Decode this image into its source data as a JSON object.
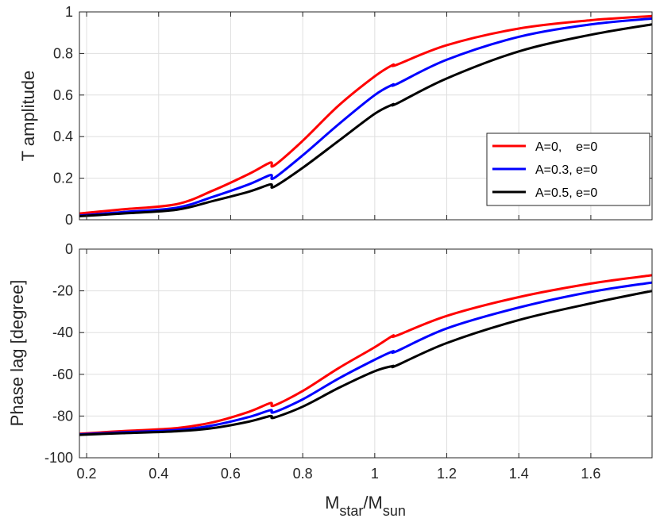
{
  "chart_data": [
    {
      "type": "line",
      "ylabel": "T amplitude",
      "xlabel": "",
      "xlim": [
        0.18,
        1.77
      ],
      "ylim": [
        0,
        1
      ],
      "grid": true,
      "x_ticks": [
        0.2,
        0.4,
        0.6,
        0.8,
        1.0,
        1.2,
        1.4,
        1.6
      ],
      "x_tick_labels": [
        "",
        "",
        "",
        "",
        "",
        "",
        "",
        ""
      ],
      "y_ticks": [
        0,
        0.2,
        0.4,
        0.6,
        0.8,
        1
      ],
      "y_tick_labels": [
        "0",
        "0.2",
        "0.4",
        "0.6",
        "0.8",
        "1"
      ],
      "legend": {
        "placement": "center-right",
        "entries": [
          "A=0,    e=0",
          "A=0.3, e=0",
          "A=0.5, e=0"
        ]
      },
      "series": [
        {
          "name": "A=0,    e=0",
          "color": "#ff0000",
          "x": [
            0.18,
            0.3,
            0.45,
            0.55,
            0.65,
            0.71,
            0.72,
            0.8,
            0.9,
            1.0,
            1.05,
            1.06,
            1.2,
            1.4,
            1.6,
            1.77
          ],
          "y": [
            0.03,
            0.05,
            0.075,
            0.14,
            0.22,
            0.275,
            0.26,
            0.38,
            0.55,
            0.69,
            0.745,
            0.745,
            0.84,
            0.92,
            0.96,
            0.98
          ]
        },
        {
          "name": "A=0.3, e=0",
          "color": "#0000ff",
          "x": [
            0.18,
            0.3,
            0.45,
            0.55,
            0.65,
            0.71,
            0.72,
            0.8,
            0.9,
            1.0,
            1.05,
            1.06,
            1.2,
            1.4,
            1.6,
            1.77
          ],
          "y": [
            0.02,
            0.037,
            0.058,
            0.11,
            0.17,
            0.215,
            0.2,
            0.31,
            0.46,
            0.6,
            0.65,
            0.652,
            0.77,
            0.88,
            0.94,
            0.968
          ]
        },
        {
          "name": "A=0.5, e=0",
          "color": "#000000",
          "x": [
            0.18,
            0.3,
            0.45,
            0.55,
            0.65,
            0.71,
            0.72,
            0.8,
            0.9,
            1.0,
            1.05,
            1.06,
            1.2,
            1.4,
            1.6,
            1.77
          ],
          "y": [
            0.017,
            0.03,
            0.048,
            0.09,
            0.135,
            0.17,
            0.158,
            0.25,
            0.38,
            0.51,
            0.555,
            0.558,
            0.68,
            0.81,
            0.89,
            0.94
          ]
        }
      ]
    },
    {
      "type": "line",
      "ylabel": "Phase lag [degree]",
      "xlabel_main": "M",
      "xlabel_sub1": "star",
      "xlabel_slash": "/M",
      "xlabel_sub2": "sun",
      "xlim": [
        0.18,
        1.77
      ],
      "ylim": [
        -100,
        0
      ],
      "grid": true,
      "x_ticks": [
        0.2,
        0.4,
        0.6,
        0.8,
        1.0,
        1.2,
        1.4,
        1.6
      ],
      "x_tick_labels": [
        "0.2",
        "0.4",
        "0.6",
        "0.8",
        "1",
        "1.2",
        "1.4",
        "1.6"
      ],
      "y_ticks": [
        -100,
        -80,
        -60,
        -40,
        -20,
        0
      ],
      "y_tick_labels": [
        "-100",
        "-80",
        "-60",
        "-40",
        "-20",
        "0"
      ],
      "series": [
        {
          "name": "A=0,    e=0",
          "color": "#ff0000",
          "x": [
            0.18,
            0.3,
            0.45,
            0.55,
            0.65,
            0.71,
            0.72,
            0.8,
            0.9,
            1.0,
            1.05,
            1.06,
            1.2,
            1.4,
            1.6,
            1.77
          ],
          "y": [
            -88.5,
            -87.2,
            -85.8,
            -83,
            -78,
            -73.8,
            -75,
            -68,
            -57,
            -47,
            -41.5,
            -41.5,
            -32,
            -23,
            -16.5,
            -12.5
          ]
        },
        {
          "name": "A=0.3, e=0",
          "color": "#0000ff",
          "x": [
            0.18,
            0.3,
            0.45,
            0.55,
            0.65,
            0.71,
            0.72,
            0.8,
            0.9,
            1.0,
            1.05,
            1.06,
            1.2,
            1.4,
            1.6,
            1.77
          ],
          "y": [
            -88.8,
            -87.8,
            -86.7,
            -84.5,
            -80.5,
            -77.2,
            -78.2,
            -72,
            -62,
            -53,
            -49,
            -49,
            -38,
            -28,
            -20.5,
            -16
          ]
        },
        {
          "name": "A=0.5, e=0",
          "color": "#000000",
          "x": [
            0.18,
            0.3,
            0.45,
            0.55,
            0.65,
            0.71,
            0.72,
            0.8,
            0.9,
            1.0,
            1.05,
            1.06,
            1.2,
            1.4,
            1.6,
            1.77
          ],
          "y": [
            -89,
            -88.2,
            -87.3,
            -85.8,
            -82.7,
            -80,
            -80.8,
            -75.5,
            -66.5,
            -58.5,
            -56,
            -55.8,
            -45,
            -34,
            -26,
            -20
          ]
        }
      ]
    }
  ]
}
